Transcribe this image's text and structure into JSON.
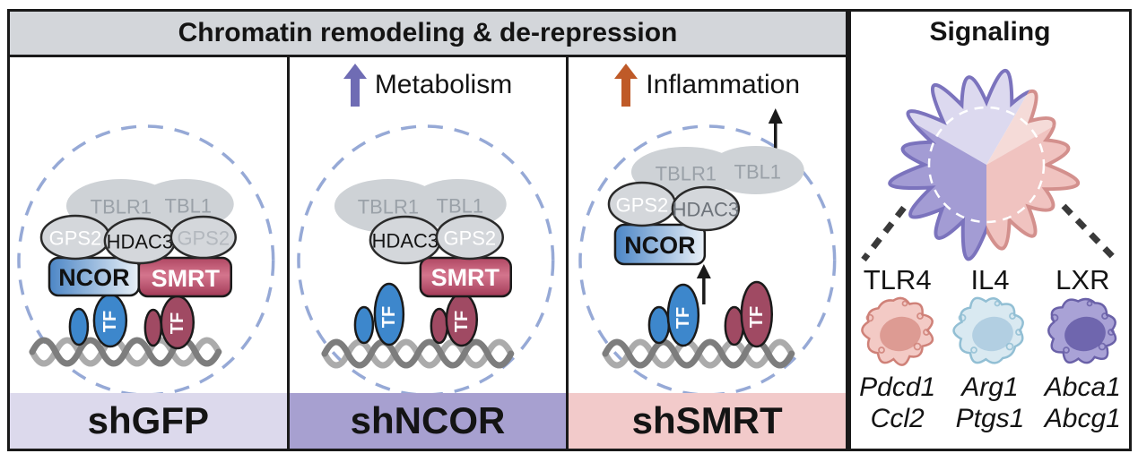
{
  "figure": {
    "chromatin_title": "Chromatin remodeling & de-repression",
    "signaling_title": "Signaling"
  },
  "molecules": {
    "tblr1": "TBLR1",
    "tbl1": "TBL1",
    "gps2": "GPS2",
    "hdac3": "HDAC3",
    "ncor": "NCOR",
    "smrt": "SMRT",
    "tf": "TF"
  },
  "panels": [
    {
      "label": "shGFP",
      "band_color": "#dcd9ec",
      "arrow_label": "",
      "arrow_color": ""
    },
    {
      "label": "shNCOR",
      "band_color": "#a7a0d0",
      "arrow_label": "Metabolism",
      "arrow_color": "#6f6cb4"
    },
    {
      "label": "shSMRT",
      "band_color": "#f2caca",
      "arrow_label": "Inflammation",
      "arrow_color": "#bf5a28"
    }
  ],
  "signaling": {
    "pathways": [
      {
        "receptor": "TLR4",
        "genes": [
          "Pdcd1",
          "Ccl2"
        ],
        "cell_fill": "#f3cac5",
        "cell_stroke": "#cf8178",
        "nucleus": "#dd9b93"
      },
      {
        "receptor": "IL4",
        "genes": [
          "Arg1",
          "Ptgs1"
        ],
        "cell_fill": "#d9e9f1",
        "cell_stroke": "#92bfd4",
        "nucleus": "#b2cfe2"
      },
      {
        "receptor": "LXR",
        "genes": [
          "Abca1",
          "Abcg1"
        ],
        "cell_fill": "#a9a2d6",
        "cell_stroke": "#6a61a8",
        "nucleus": "#6f66ae"
      }
    ]
  },
  "colors": {
    "header_bg": "#d3d6da",
    "border": "#1a1a1a",
    "dashed_circle": "#96a9d6",
    "gray_blob": "#ced2d6",
    "gray_blob_text": "#9aa1a8",
    "oval_fill": "#d4d7db",
    "oval_stroke": "#2a2a2a",
    "gps2_text_bright": "#ffffff",
    "gps2_text_dim": "#b3b8be",
    "hdac3_text_dark": "#141414",
    "hdac3_text_dim": "#6e747b",
    "ncor_grad": [
      "#4c86c6",
      "#e9f0f7"
    ],
    "smrt_grad": [
      "#b04763",
      "#d4758d",
      "#a23a57"
    ],
    "tf_blue": "#3d87cc",
    "tf_red": "#a04a63",
    "dna_dark": "#7d7d7d",
    "dna_light": "#ababab",
    "black_arrow": "#1a1a1a",
    "signaling_cell": {
      "top_left_fill": "#dcd9ef",
      "top_right_fill": "#f5dbd8",
      "bottom_left_fill": "#a39cd4",
      "bottom_right_fill": "#f0c3c0",
      "purple_stroke": "#7b73bd",
      "pink_stroke": "#d3908d",
      "dash_line": "#3a3a3a",
      "inner_dash": "#ffffff"
    }
  }
}
